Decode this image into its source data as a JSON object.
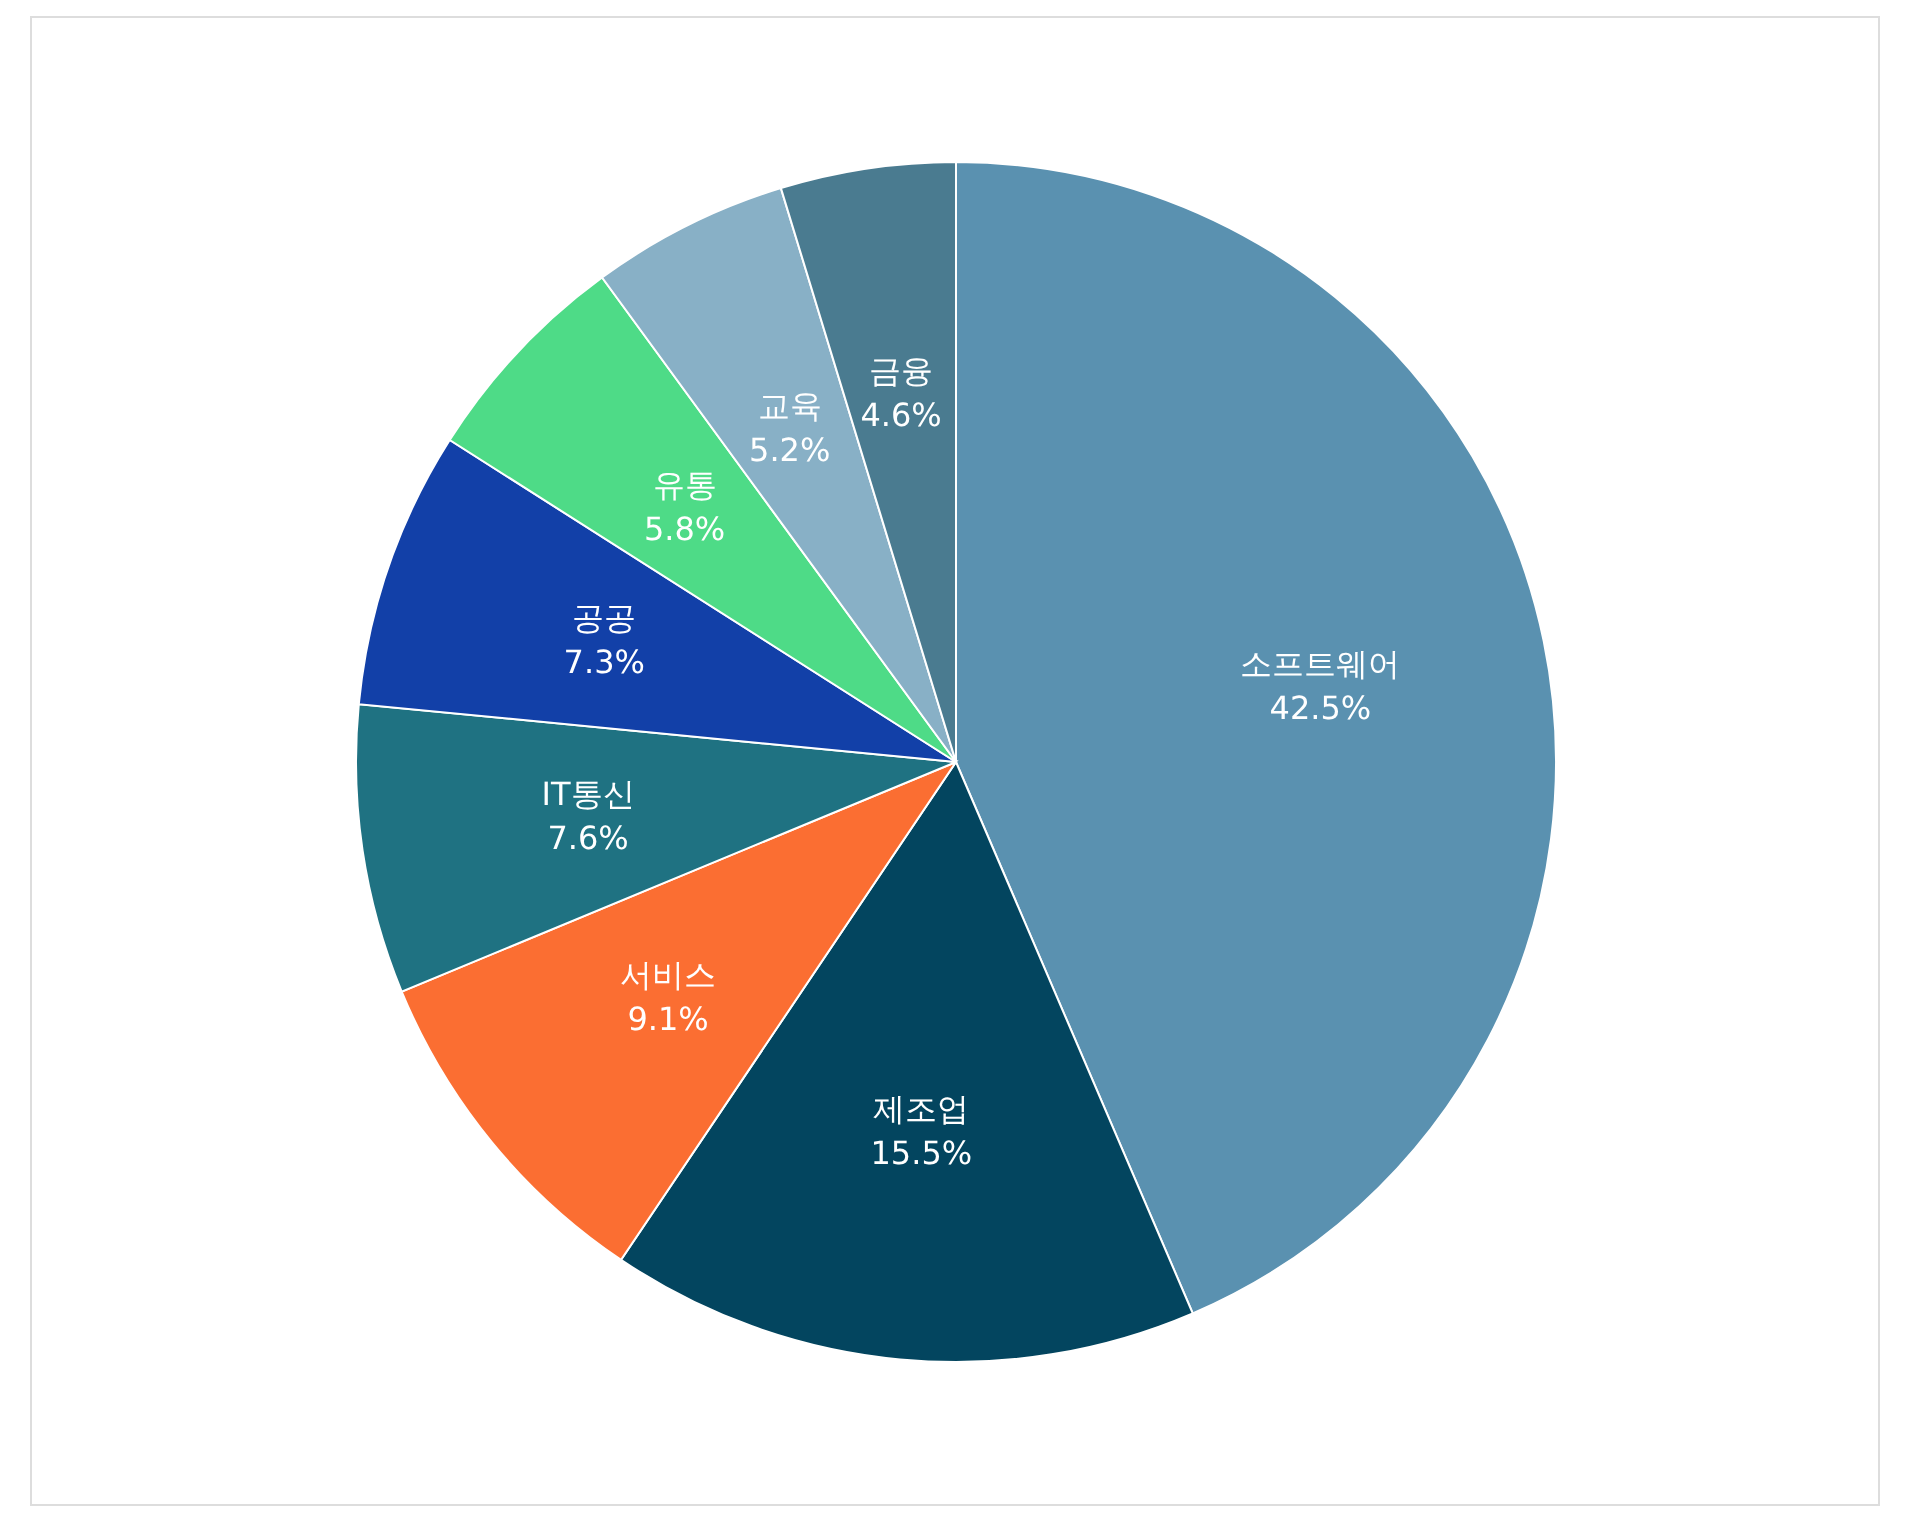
{
  "chart_data": {
    "type": "pie",
    "categories": [
      "소프트웨어",
      "제조업",
      "서비스",
      "IT통신",
      "공공",
      "유통",
      "교육",
      "금융"
    ],
    "values": [
      42.5,
      15.5,
      9.1,
      7.6,
      7.3,
      5.8,
      5.2,
      4.6
    ],
    "value_labels": [
      "42.5%",
      "15.5%",
      "9.1%",
      "7.6%",
      "7.3%",
      "5.8%",
      "5.2%",
      "4.6%"
    ],
    "colors": [
      "#5a91b0",
      "#03455f",
      "#fb6e32",
      "#1f7282",
      "#1240a8",
      "#4edb87",
      "#88b0c6",
      "#4a7b90"
    ]
  }
}
